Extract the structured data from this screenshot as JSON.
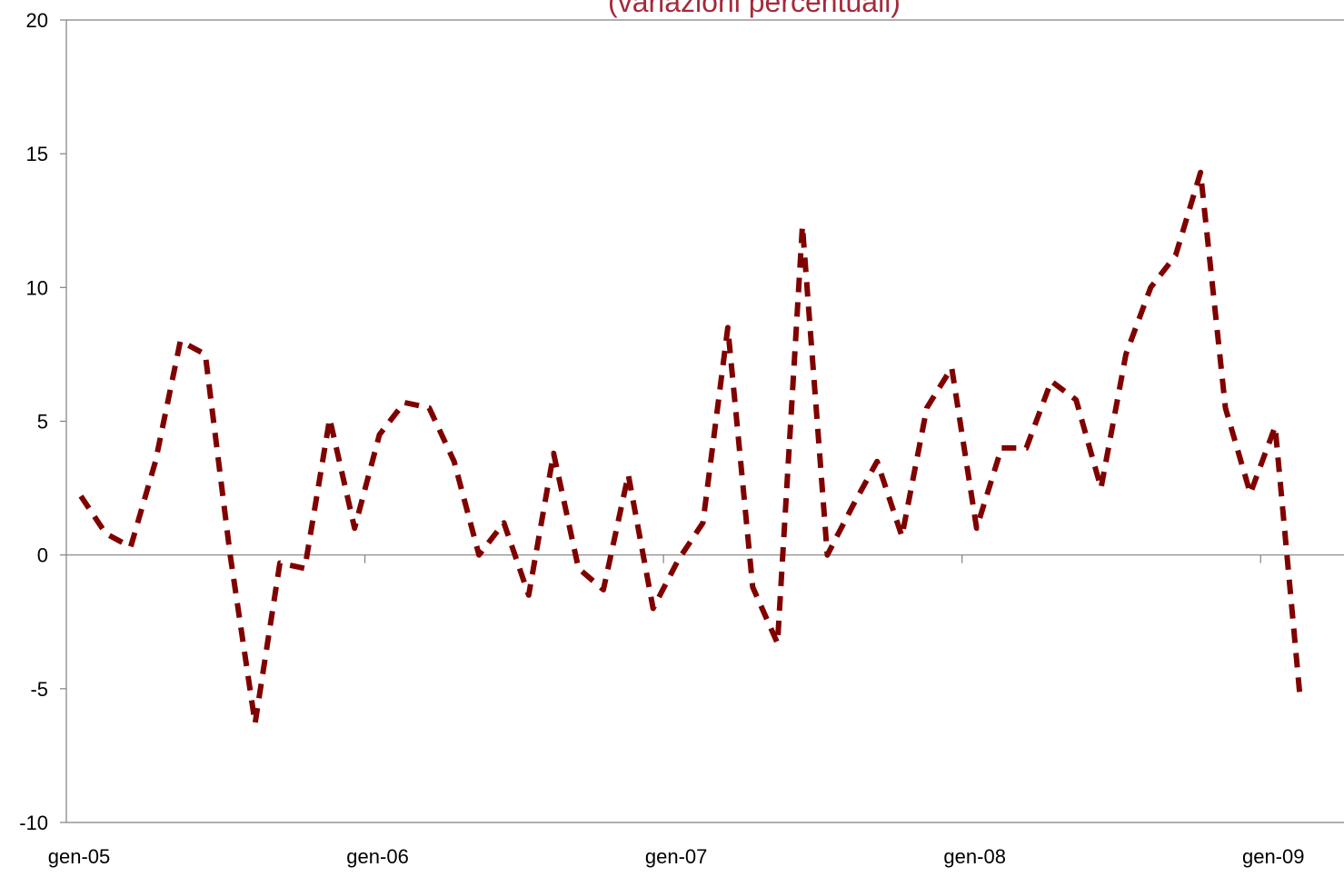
{
  "chart_data": {
    "type": "line",
    "title": "(variazioni percentuali)",
    "xlabel": "",
    "ylabel": "",
    "ylim": [
      -10,
      20
    ],
    "yticks": [
      -10,
      -5,
      0,
      5,
      10,
      15,
      20
    ],
    "x_tick_labels": [
      "gen-05",
      "gen-06",
      "gen-07",
      "gen-08",
      "gen-09"
    ],
    "grid": false,
    "legend": "none",
    "line_style": "dashed",
    "series": [
      {
        "values": [
          2.2,
          0.8,
          0.3,
          3.5,
          8.0,
          7.5,
          0.0,
          -6.3,
          -0.3,
          -0.5,
          5.1,
          1.0,
          4.5,
          5.7,
          5.5,
          3.5,
          0.0,
          1.2,
          -1.5,
          3.8,
          -0.5,
          -1.3,
          3.0,
          -2.0,
          -0.2,
          1.2,
          8.5,
          -1.2,
          -3.3,
          12.3,
          0.0,
          1.8,
          3.5,
          0.7,
          5.5,
          7.0,
          1.0,
          4.0,
          4.0,
          6.5,
          5.8,
          2.5,
          7.5,
          10.0,
          11.2,
          14.3,
          5.5,
          2.3,
          4.8,
          -5.3
        ]
      }
    ],
    "colors": {
      "line": "#800000",
      "axis": "#808080",
      "title": "#A52A3A"
    }
  }
}
